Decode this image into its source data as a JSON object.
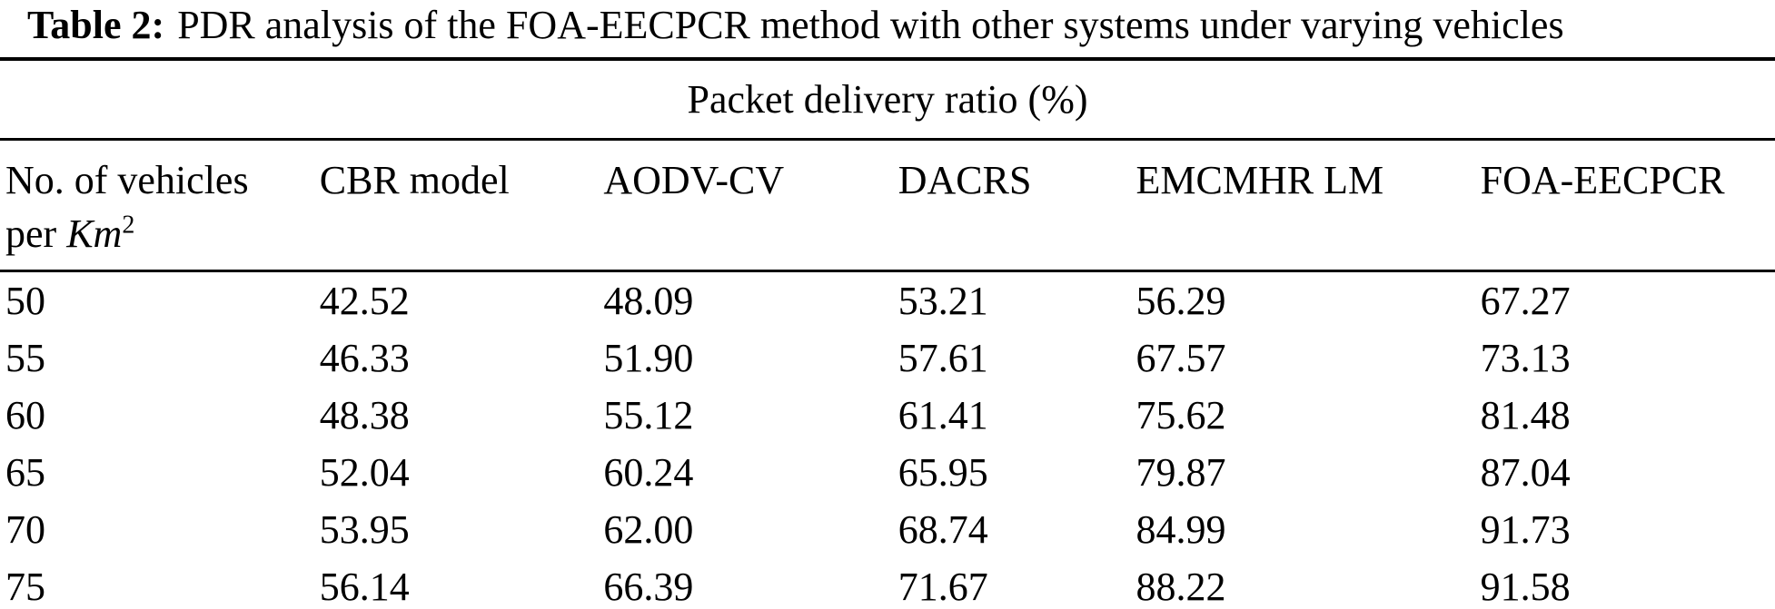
{
  "table": {
    "caption_label": "Table 2:",
    "caption_text": "PDR analysis of the FOA-EECPCR method with other systems under varying vehicles",
    "span_header": "Packet delivery ratio (%)",
    "row_header": {
      "line1": "No. of vehicles",
      "line2_prefix": "per ",
      "line2_unit": "Km",
      "line2_sup": "2"
    },
    "columns": [
      "CBR model",
      "AODV-CV",
      "DACRS",
      "EMCMHR LM",
      "FOA-EECPCR"
    ],
    "rows": [
      {
        "vehicles": "50",
        "values": [
          "42.52",
          "48.09",
          "53.21",
          "56.29",
          "67.27"
        ]
      },
      {
        "vehicles": "55",
        "values": [
          "46.33",
          "51.90",
          "57.61",
          "67.57",
          "73.13"
        ]
      },
      {
        "vehicles": "60",
        "values": [
          "48.38",
          "55.12",
          "61.41",
          "75.62",
          "81.48"
        ]
      },
      {
        "vehicles": "65",
        "values": [
          "52.04",
          "60.24",
          "65.95",
          "79.87",
          "87.04"
        ]
      },
      {
        "vehicles": "70",
        "values": [
          "53.95",
          "62.00",
          "68.74",
          "84.99",
          "91.73"
        ]
      },
      {
        "vehicles": "75",
        "values": [
          "56.14",
          "66.39",
          "71.67",
          "88.22",
          "91.58"
        ]
      }
    ],
    "text_color": "#000000",
    "background_color": "#ffffff"
  }
}
